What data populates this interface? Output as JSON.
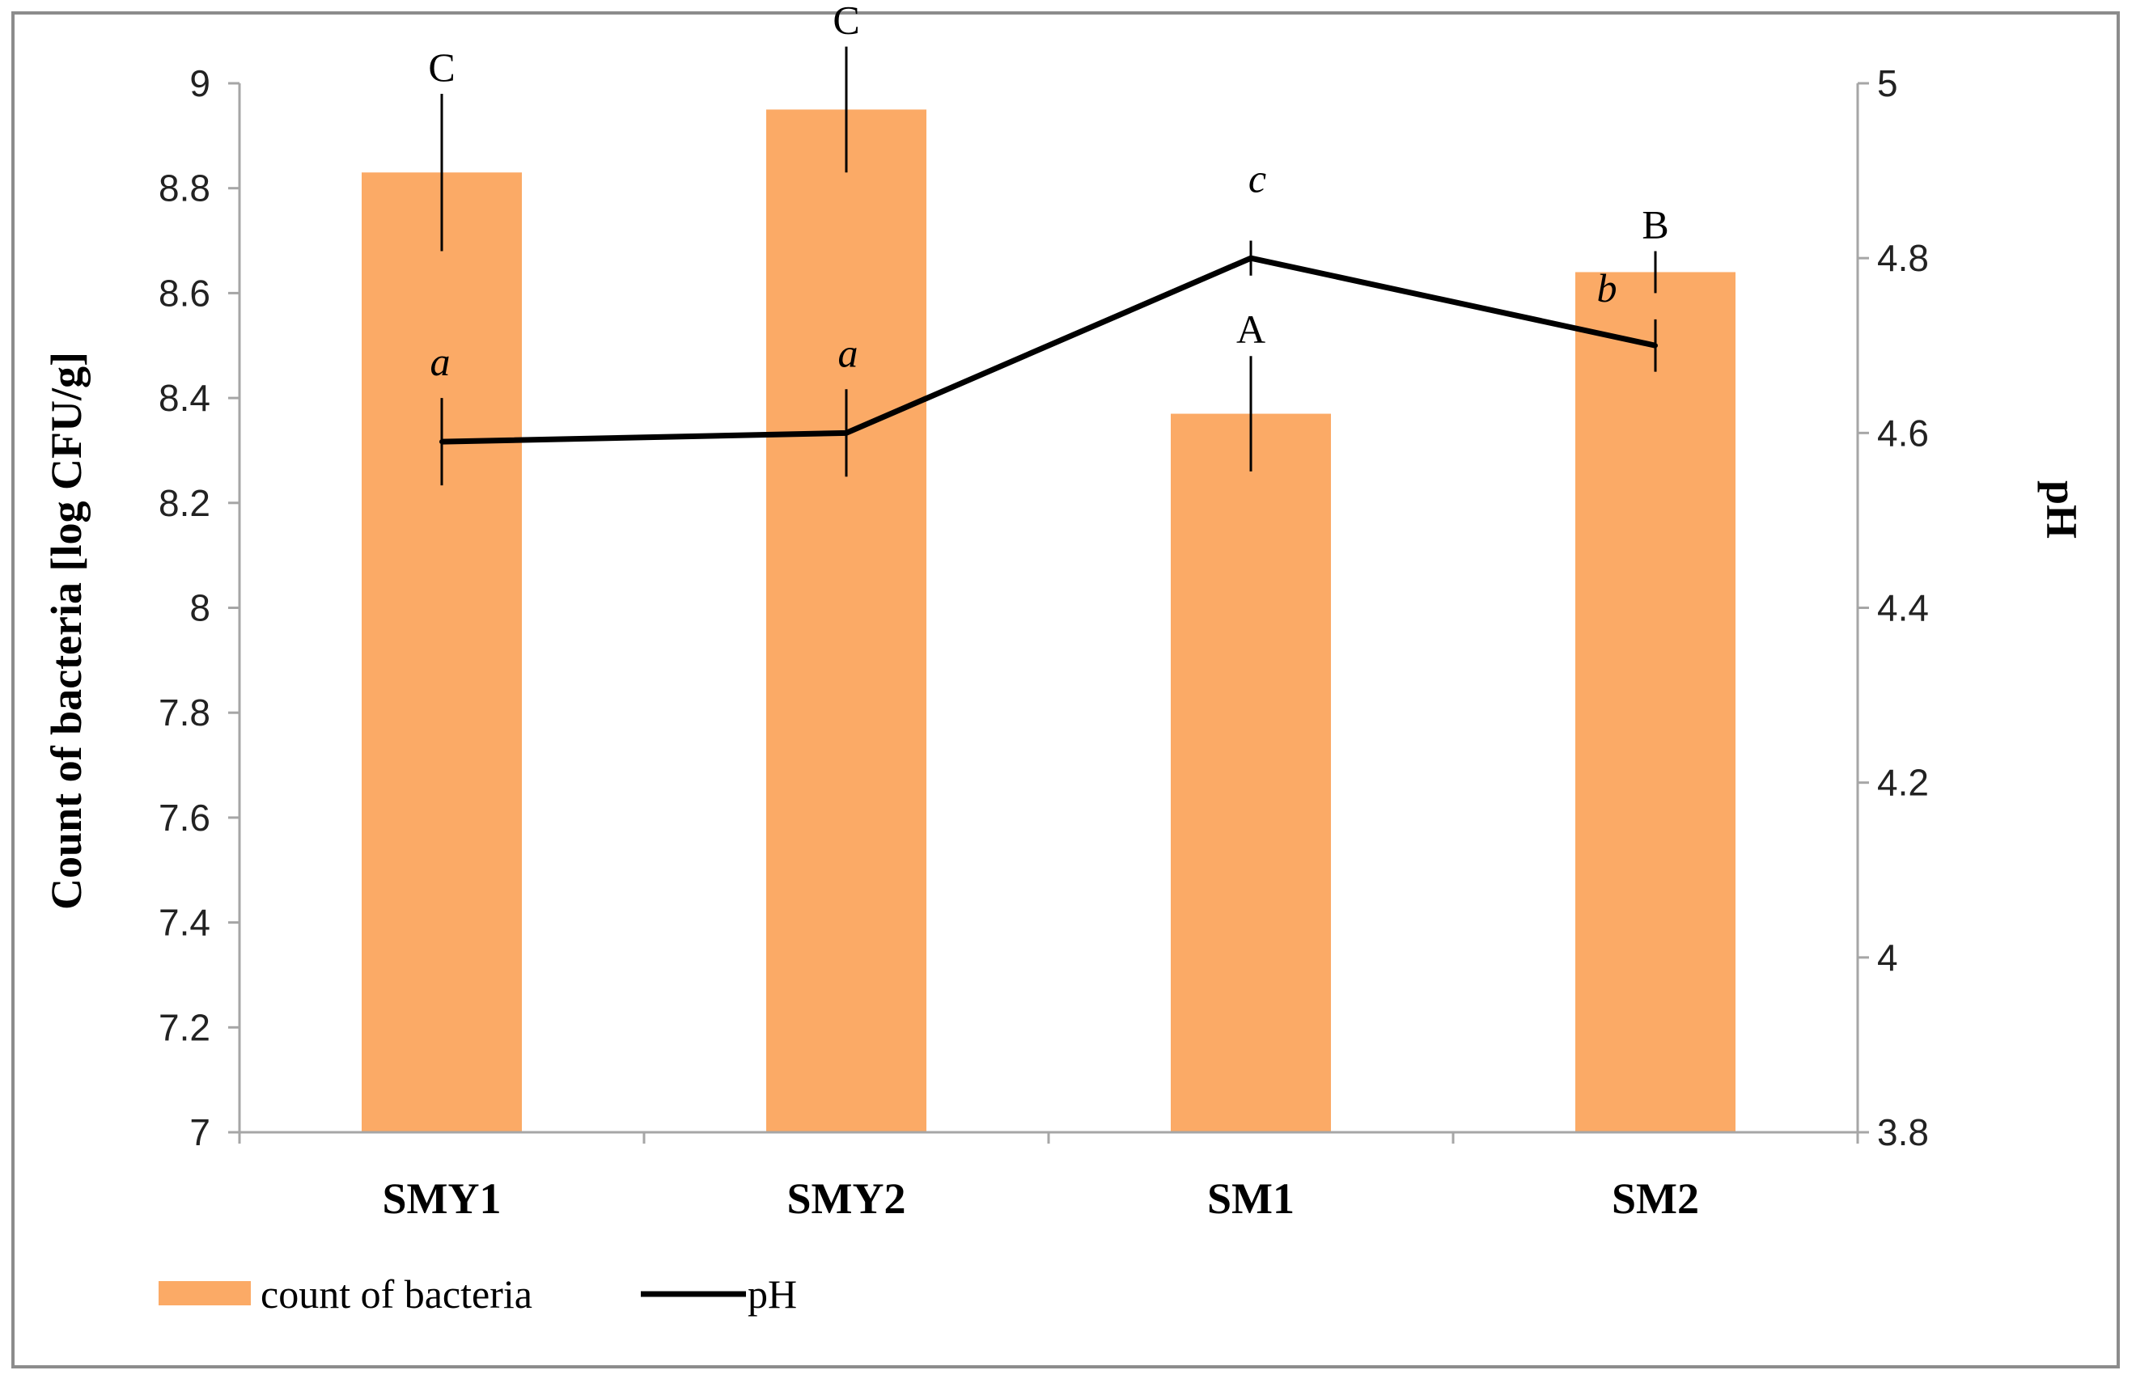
{
  "chart_data": {
    "type": "bar",
    "categories": [
      "SMY1",
      "SMY2",
      "SM1",
      "SM2"
    ],
    "series": [
      {
        "name": "count of bacteria",
        "kind": "bar",
        "axis": "left",
        "color": "#fbaa66",
        "values": [
          8.83,
          8.95,
          8.37,
          8.64
        ],
        "error": [
          0.15,
          0.12,
          0.11,
          0.04
        ],
        "letters": [
          "C",
          "C",
          "A",
          "B"
        ]
      },
      {
        "name": "pH",
        "kind": "line",
        "axis": "right",
        "color": "#000000",
        "values": [
          4.59,
          4.6,
          4.8,
          4.7
        ],
        "error": [
          0.05,
          0.05,
          0.02,
          0.03
        ],
        "letters": [
          "a",
          "a",
          "c",
          "b"
        ]
      }
    ],
    "ylabel": "Count of bacteria [log CFU/g]",
    "y2label": "pH",
    "ylim": [
      7,
      9
    ],
    "y2lim": [
      3.8,
      5
    ],
    "yticks": [
      "7",
      "7.2",
      "7.4",
      "7.6",
      "7.8",
      "8",
      "8.2",
      "8.4",
      "8.6",
      "8.8",
      "9"
    ],
    "y2ticks": [
      "3.8",
      "4",
      "4.2",
      "4.4",
      "4.6",
      "4.8",
      "5"
    ],
    "legend": [
      "count of bacteria",
      "pH"
    ],
    "legend_position": "bottom-left"
  }
}
